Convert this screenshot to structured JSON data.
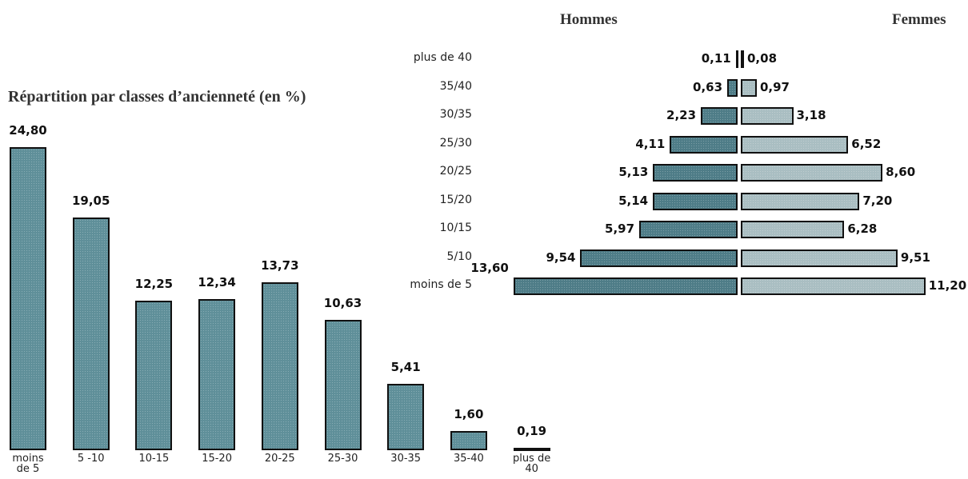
{
  "chart_data": [
    {
      "type": "bar",
      "title": "Répartition par classes d’ancienneté (en %)",
      "categories": [
        "moins de 5",
        "5 -10",
        "10-15",
        "15-20",
        "20-25",
        "25-30",
        "30-35",
        "35-40",
        "plus de 40"
      ],
      "values": [
        24.8,
        19.05,
        12.25,
        12.34,
        13.73,
        10.63,
        5.41,
        1.6,
        0.19
      ],
      "value_labels": [
        "24,80",
        "19,05",
        "12,25",
        "12,34",
        "13,73",
        "10,63",
        "5,41",
        "1,60",
        "0,19"
      ],
      "color": "#5f8f99"
    },
    {
      "type": "pyramid",
      "categories": [
        "moins de 5",
        "5/10",
        "10/15",
        "15/20",
        "20/25",
        "25/30",
        "30/35",
        "35/40",
        "plus de 40"
      ],
      "series": [
        {
          "name": "Hommes",
          "color": "#4e7c87",
          "values": [
            13.6,
            9.54,
            5.97,
            5.14,
            5.13,
            4.11,
            2.23,
            0.63,
            0.11
          ],
          "value_labels": [
            "13,60",
            "9,54",
            "5,97",
            "5,14",
            "5,13",
            "4,11",
            "2,23",
            "0,63",
            "0,11"
          ]
        },
        {
          "name": "Femmes",
          "color": "#a9bec2",
          "values": [
            11.2,
            9.51,
            6.28,
            7.2,
            8.6,
            6.52,
            3.18,
            0.97,
            0.08
          ],
          "value_labels": [
            "11,20",
            "9,51",
            "6,28",
            "7,20",
            "8,60",
            "6,52",
            "3,18",
            "0,97",
            "0,08"
          ]
        }
      ]
    }
  ]
}
